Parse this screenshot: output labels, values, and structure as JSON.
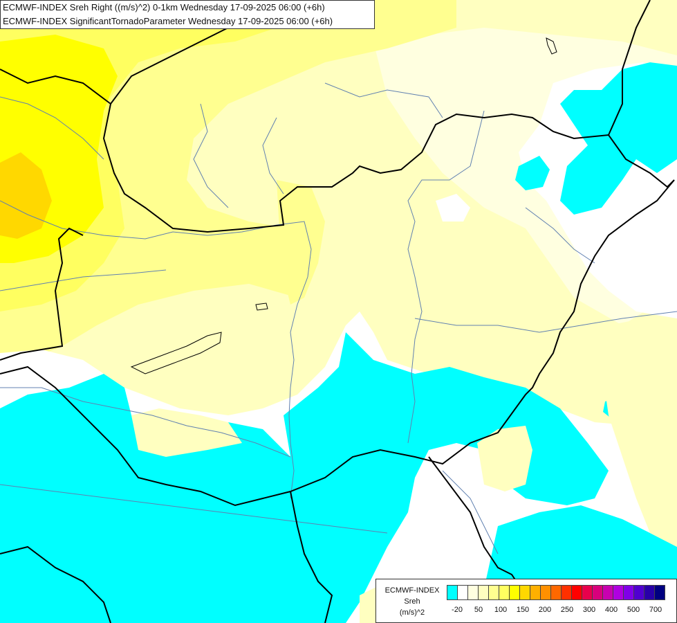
{
  "title": {
    "line1": "ECMWF-INDEX Sreh Right ((m/s)^2) 0-1km Wednesday 17-09-2025 06:00 (+6h)",
    "line2": "ECMWF-INDEX SignificantTornadoParameter Wednesday 17-09-2025 06:00 (+6h)"
  },
  "legend": {
    "title_line1": "ECMWF-INDEX",
    "title_line2": "Sreh",
    "title_line3": "(m/s)^2",
    "colors": [
      "#00ffff",
      "#ffffff",
      "#ffffe0",
      "#ffffc0",
      "#ffff90",
      "#ffff60",
      "#ffff00",
      "#ffd800",
      "#ffb000",
      "#ff9000",
      "#ff6800",
      "#ff3000",
      "#ff0000",
      "#e8004c",
      "#d8007c",
      "#c800b0",
      "#b000e0",
      "#8000e8",
      "#5000d0",
      "#2800a8",
      "#000080"
    ],
    "ticks": [
      "-20",
      "50",
      "100",
      "150",
      "200",
      "250",
      "300",
      "400",
      "500",
      "700"
    ]
  },
  "palette": {
    "cyan": "#00ffff",
    "white": "#ffffff",
    "pale_yellow": "#ffffc0",
    "light_yellow": "#ffff90",
    "yellow": "#ffff60",
    "bright_yellow": "#ffff00",
    "orange": "#ffd800",
    "border_color": "#000000",
    "river_color": "#6080b0"
  }
}
